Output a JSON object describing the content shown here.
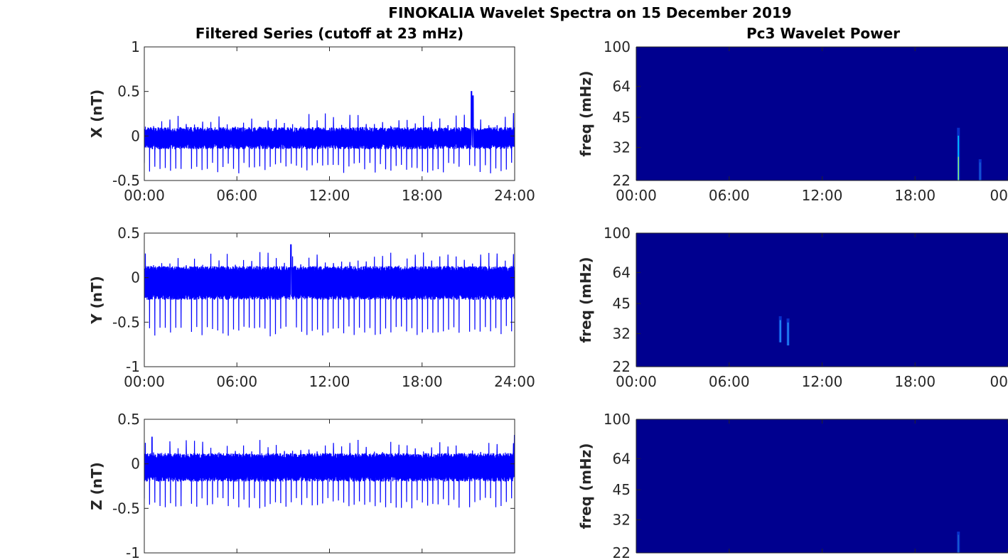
{
  "title": "FINOKALIA Wavelet Spectra on 15 December 2019",
  "colors": {
    "series": "#0000ff",
    "heatmap_background": "#00008f",
    "axis": "#262626"
  },
  "chart_data": [
    {
      "type": "line",
      "title": "Filtered Series (cutoff at 23 mHz)",
      "ylabel": "X (nT)",
      "ylim": [
        -0.5,
        1
      ],
      "yticks": [
        "-0.5",
        "0",
        "0.5",
        "1"
      ],
      "xticks": [
        "00:00",
        "06:00",
        "12:00",
        "18:00",
        "24:00"
      ],
      "xlim_hours": [
        0,
        24
      ],
      "grid": false,
      "series": [
        {
          "values_summary": "noise band approx -0.15 to 0.1 nT with frequent negative spikes to about -0.4 nT and a positive burst near 21:00 reaching about 0.5 nT",
          "peaks": [
            {
              "hour": 21.2,
              "y": 0.5
            },
            {
              "hour": 21.3,
              "y": 0.45
            }
          ]
        }
      ]
    },
    {
      "type": "heatmap",
      "title": "Pc3 Wavelet Power",
      "ylabel": "freq (mHz)",
      "yscale": "log",
      "ylim": [
        22,
        100
      ],
      "yticks": [
        "22",
        "32",
        "45",
        "64",
        "100"
      ],
      "xticks": [
        "00:00",
        "06:00",
        "12:00",
        "18:00",
        "00"
      ],
      "features": [
        {
          "hour": 20.8,
          "freq_low": 22,
          "freq_high": 40,
          "intensity": "high"
        },
        {
          "hour": 22.2,
          "freq_low": 22,
          "freq_high": 28,
          "intensity": "low"
        }
      ]
    },
    {
      "type": "line",
      "ylabel": "Y (nT)",
      "ylim": [
        -1,
        0.5
      ],
      "yticks": [
        "-1",
        "-0.5",
        "0",
        "0.5"
      ],
      "xticks": [
        "00:00",
        "06:00",
        "12:00",
        "18:00",
        "24:00"
      ],
      "xlim_hours": [
        0,
        24
      ],
      "grid": false,
      "series": [
        {
          "values_summary": "noise band approx -0.25 to 0.15 nT with regular negative spikes to about -0.65 nT; largest positive excursion near 09:30 at about 0.37 nT",
          "peaks": [
            {
              "hour": 9.5,
              "y": 0.37
            }
          ]
        }
      ]
    },
    {
      "type": "heatmap",
      "ylabel": "freq (mHz)",
      "yscale": "log",
      "ylim": [
        22,
        100
      ],
      "yticks": [
        "22",
        "32",
        "45",
        "64",
        "100"
      ],
      "xticks": [
        "00:00",
        "06:00",
        "12:00",
        "18:00",
        "00"
      ],
      "features": [
        {
          "hour": 9.3,
          "freq_low": 29,
          "freq_high": 39,
          "intensity": "medium"
        },
        {
          "hour": 9.8,
          "freq_low": 28,
          "freq_high": 38,
          "intensity": "medium"
        }
      ]
    },
    {
      "type": "line",
      "ylabel": "Z (nT)",
      "ylim": [
        -1,
        0.5
      ],
      "yticks": [
        "-1",
        "-0.5",
        "0",
        "0.5"
      ],
      "xticks": [
        "",
        "",
        "",
        "",
        ""
      ],
      "xlim_hours": [
        0,
        24
      ],
      "grid": false,
      "series": [
        {
          "values_summary": "noise band approx -0.2 to 0.15 nT with regular negative spikes to about -0.5 nT; positive spikes up to about 0.3 nT",
          "peaks": [
            {
              "hour": 0.5,
              "y": 0.3
            },
            {
              "hour": 24,
              "y": 0.32
            }
          ]
        }
      ]
    },
    {
      "type": "heatmap",
      "ylabel": "freq (mHz)",
      "yscale": "log",
      "ylim": [
        22,
        100
      ],
      "yticks": [
        "22",
        "32",
        "45",
        "64",
        "100"
      ],
      "xticks": [],
      "features": [
        {
          "hour": 20.8,
          "freq_low": 22,
          "freq_high": 28,
          "intensity": "low"
        }
      ]
    }
  ]
}
